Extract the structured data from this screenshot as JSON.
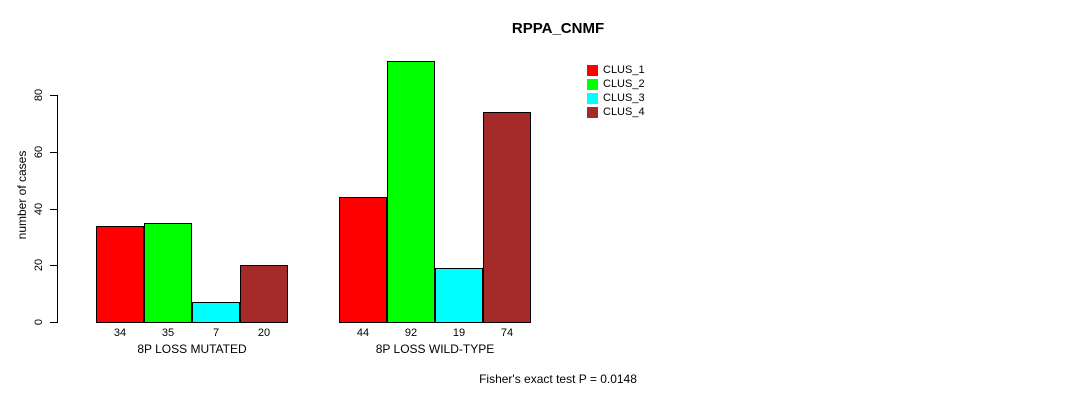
{
  "chart_data": {
    "type": "bar",
    "title": "RPPA_CNMF",
    "ylabel": "number of cases",
    "xlabel": "",
    "ylim": [
      0,
      80
    ],
    "yticks": [
      0,
      20,
      40,
      60,
      80
    ],
    "grid": false,
    "legend_position": "top-right",
    "categories": [
      "8P LOSS MUTATED",
      "8P LOSS WILD-TYPE"
    ],
    "series": [
      {
        "name": "CLUS_1",
        "color": "#ff0000",
        "values": [
          34,
          44
        ]
      },
      {
        "name": "CLUS_2",
        "color": "#00ff00",
        "values": [
          35,
          92
        ]
      },
      {
        "name": "CLUS_3",
        "color": "#00ffff",
        "values": [
          7,
          19
        ]
      },
      {
        "name": "CLUS_4",
        "color": "#a52a2a",
        "values": [
          20,
          74
        ]
      }
    ],
    "bar_value_labels": [
      [
        34,
        35,
        7,
        20
      ],
      [
        44,
        92,
        19,
        74
      ]
    ],
    "annotation": "Fisher's exact test P = 0.0148"
  },
  "colors": {
    "background": "#ffffff",
    "axis": "#000000",
    "text": "#000000",
    "bar_border": "#000000"
  }
}
